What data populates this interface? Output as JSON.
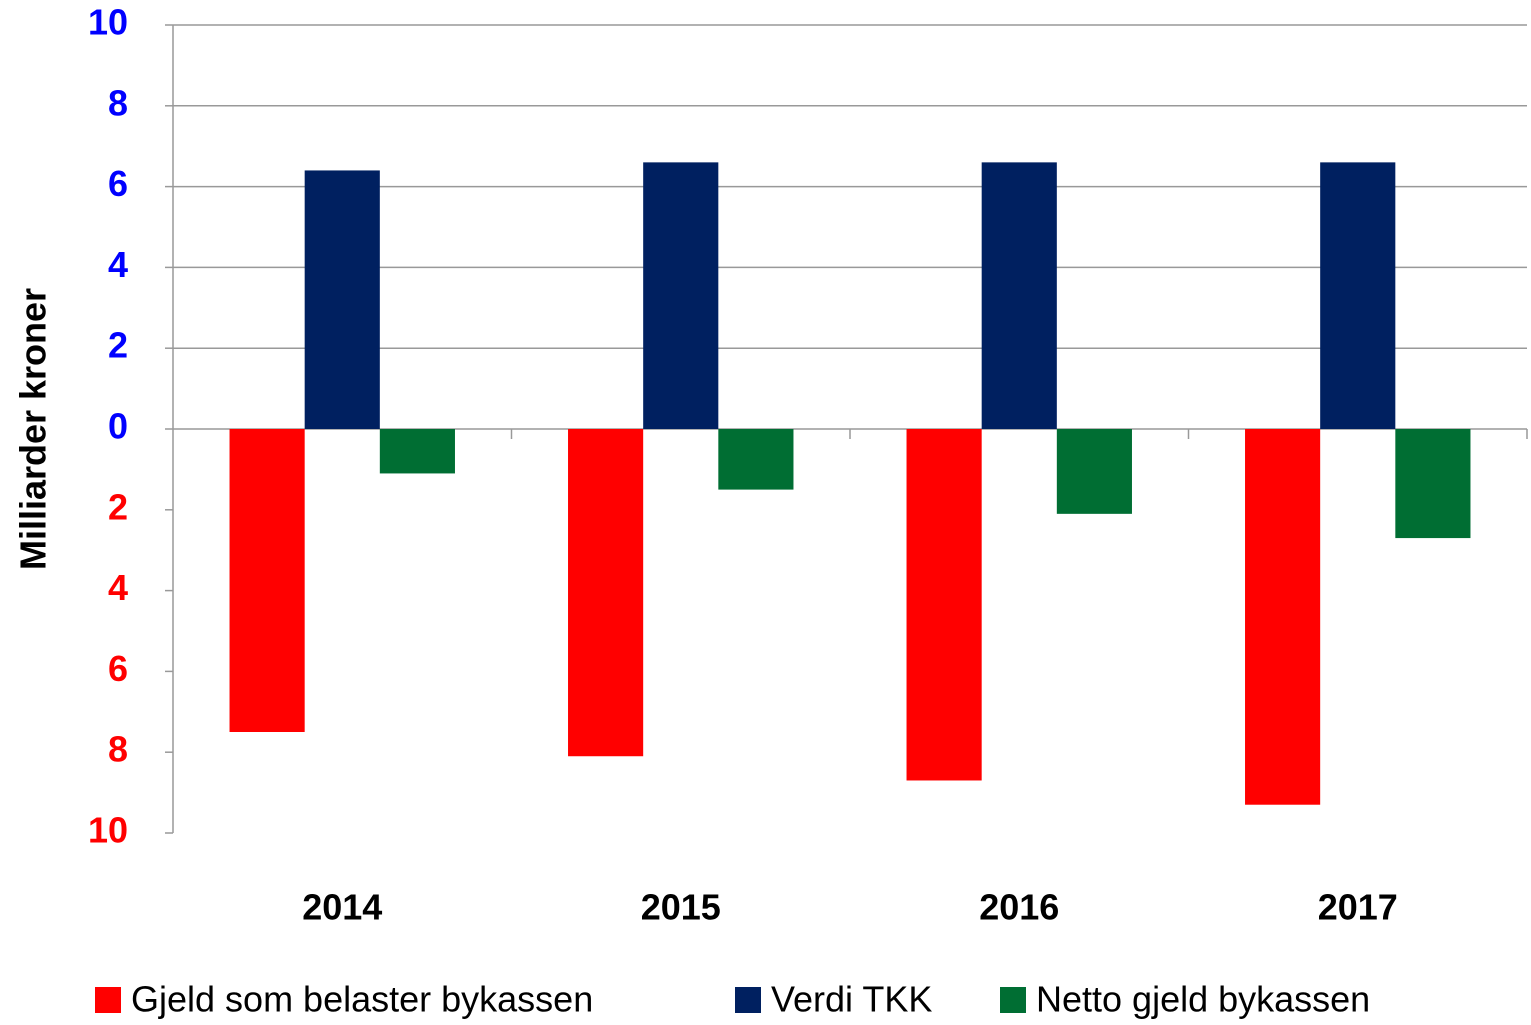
{
  "chart_data": {
    "type": "bar",
    "ylabel": "Milliarder kroner",
    "categories": [
      "2014",
      "2015",
      "2016",
      "2017"
    ],
    "series": [
      {
        "name": "Gjeld som belaster bykassen",
        "color": "#ff0000",
        "values": [
          -7.5,
          -8.1,
          -8.7,
          -9.3
        ]
      },
      {
        "name": "Verdi TKK",
        "color": "#002060",
        "values": [
          6.4,
          6.6,
          6.6,
          6.6
        ]
      },
      {
        "name": "Netto gjeld bykassen",
        "color": "#006e33",
        "values": [
          -1.1,
          -1.5,
          -2.1,
          -2.7
        ]
      }
    ],
    "ylim": [
      -10,
      10
    ],
    "yticks": [
      {
        "value": -10,
        "label": "10"
      },
      {
        "value": -8,
        "label": "8"
      },
      {
        "value": -6,
        "label": "6"
      },
      {
        "value": -4,
        "label": "4"
      },
      {
        "value": -2,
        "label": "2"
      },
      0,
      2,
      4,
      6,
      8,
      10
    ],
    "ytick_colors": [
      "#ff0000",
      "#ff0000",
      "#ff0000",
      "#ff0000",
      "#ff0000",
      "#0000ff",
      "#0000ff",
      "#0000ff",
      "#0000ff",
      "#0000ff",
      "#0000ff"
    ],
    "grid": true,
    "legend": "bottom"
  }
}
